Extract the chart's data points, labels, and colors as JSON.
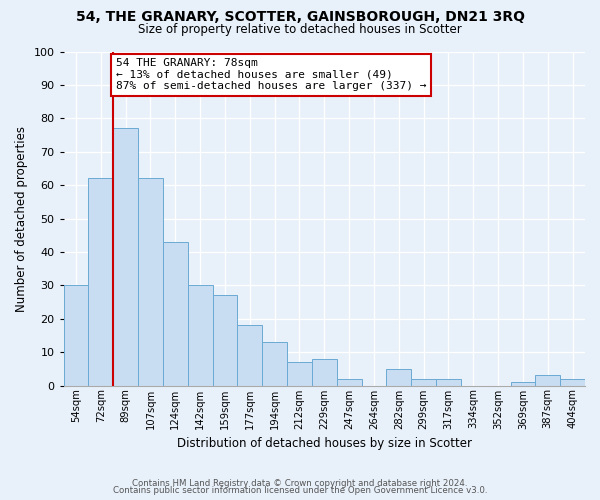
{
  "title": "54, THE GRANARY, SCOTTER, GAINSBOROUGH, DN21 3RQ",
  "subtitle": "Size of property relative to detached houses in Scotter",
  "xlabel": "Distribution of detached houses by size in Scotter",
  "ylabel": "Number of detached properties",
  "bar_labels": [
    "54sqm",
    "72sqm",
    "89sqm",
    "107sqm",
    "124sqm",
    "142sqm",
    "159sqm",
    "177sqm",
    "194sqm",
    "212sqm",
    "229sqm",
    "247sqm",
    "264sqm",
    "282sqm",
    "299sqm",
    "317sqm",
    "334sqm",
    "352sqm",
    "369sqm",
    "387sqm",
    "404sqm"
  ],
  "bar_values": [
    30,
    62,
    77,
    62,
    43,
    30,
    27,
    18,
    13,
    7,
    8,
    2,
    0,
    5,
    2,
    2,
    0,
    0,
    1,
    3,
    2
  ],
  "bar_color": "#c9ddf2",
  "bar_edge_color": "#6aaad4",
  "background_color": "#e8f0fa",
  "grid_color": "#ffffff",
  "ylim": [
    0,
    100
  ],
  "yticks": [
    0,
    10,
    20,
    30,
    40,
    50,
    60,
    70,
    80,
    90,
    100
  ],
  "annotation_text": "54 THE GRANARY: 78sqm\n← 13% of detached houses are smaller (49)\n87% of semi-detached houses are larger (337) →",
  "annotation_box_color": "#ffffff",
  "annotation_box_edge_color": "#cc0000",
  "footer_line1": "Contains HM Land Registry data © Crown copyright and database right 2024.",
  "footer_line2": "Contains public sector information licensed under the Open Government Licence v3.0."
}
